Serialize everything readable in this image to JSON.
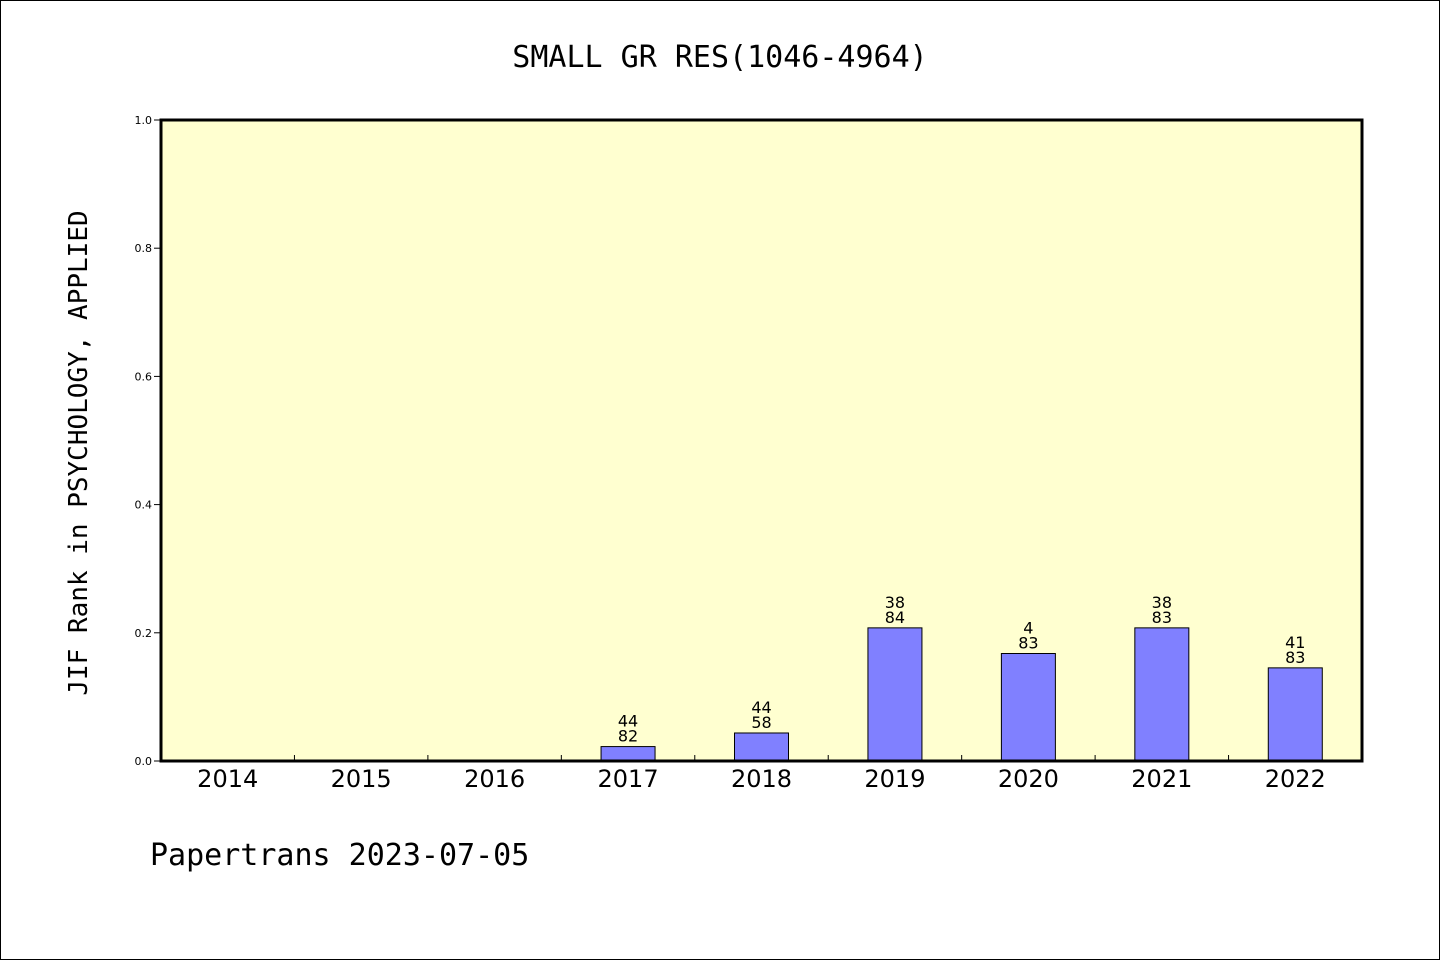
{
  "chart_data": {
    "type": "bar",
    "title": "SMALL GR RES(1046-4964)",
    "xlabel": "",
    "ylabel": "JIF Rank in PSYCHOLOGY, APPLIED",
    "ylim": [
      0,
      1.0
    ],
    "yticks": [
      "0.0",
      "0.2",
      "0.4",
      "0.6",
      "0.8",
      "1.0"
    ],
    "categories": [
      "2014",
      "2015",
      "2016",
      "2017",
      "2018",
      "2019",
      "2020",
      "2021",
      "2022"
    ],
    "values": [
      null,
      null,
      null,
      0.0225,
      0.0437,
      0.2077,
      0.1677,
      0.2077,
      0.1453
    ],
    "rank_labels": [
      null,
      null,
      null,
      {
        "rank": "44",
        "total": "82"
      },
      {
        "rank": "44",
        "total": "58"
      },
      {
        "rank": "38",
        "total": "84"
      },
      {
        "rank": "4",
        "total": "83"
      },
      {
        "rank": "38",
        "total": "83"
      },
      {
        "rank": "41",
        "total": "83"
      }
    ],
    "grid": false,
    "colors": {
      "plot_background": "#ffffd0",
      "bar_fill": "#8080ff",
      "bar_stroke": "#000000",
      "axis": "#000000"
    }
  },
  "footer": {
    "text": "Papertrans 2023-07-05"
  }
}
